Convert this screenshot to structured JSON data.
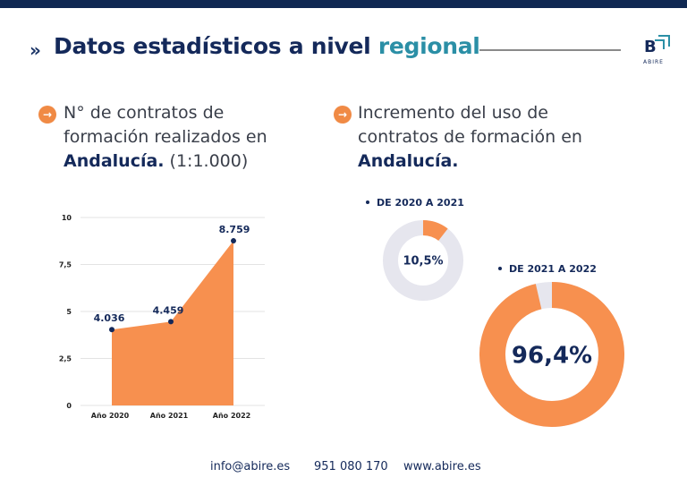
{
  "header": {
    "title_main": "Datos estadísticos a nivel ",
    "title_accent": "regional",
    "logo_letter": "B",
    "logo_word": "ABIRE"
  },
  "left_panel": {
    "line1": "N° de contratos de",
    "line2": "formación realizados en",
    "bold": "Andalucía.",
    "suffix": " (1:1.000)"
  },
  "right_panel": {
    "line1": "Incremento del uso de",
    "line2": "contratos de formación en",
    "bold": "Andalucía."
  },
  "chart_data": [
    {
      "type": "area",
      "categories": [
        "Año 2020",
        "Año 2021",
        "Año 2022"
      ],
      "values": [
        4.036,
        4.459,
        8.759
      ],
      "data_labels": [
        "4.036",
        "4.459",
        "8.759"
      ],
      "y_ticks": [
        "0",
        "2,5",
        "5",
        "7,5",
        "10"
      ],
      "ylim": [
        0,
        10
      ],
      "grid": true,
      "color": "#f7904f"
    },
    {
      "type": "pie",
      "label": "DE 2020 A 2021",
      "value": 10.5,
      "value_label": "10,5%",
      "color": "#f7904f",
      "remainder_color": "#e6e6ee"
    },
    {
      "type": "pie",
      "label": "DE 2021 A 2022",
      "value": 96.4,
      "value_label": "96,4%",
      "color": "#f7904f",
      "remainder_color": "#e6e6ee"
    }
  ],
  "footer": {
    "email": "info@abire.es",
    "phone": "951 080 170",
    "web": "www.abire.es"
  }
}
